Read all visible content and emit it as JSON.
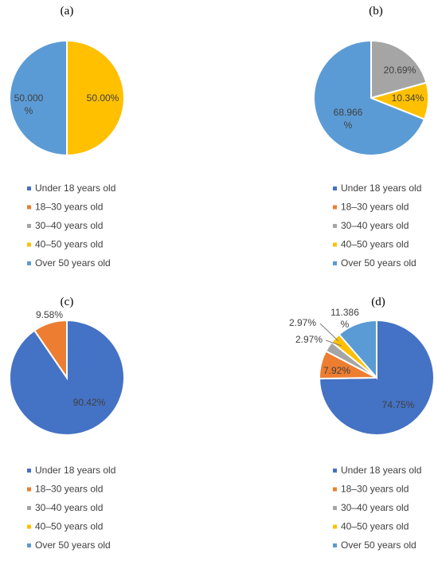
{
  "colors": {
    "Under 18 years old": "#4472C4",
    "18–30 years old": "#ED7D31",
    "30–40 years old": "#A5A5A5",
    "40–50 years old": "#FFC000",
    "Over 50 years old": "#5B9BD5"
  },
  "chart_data": [
    {
      "type": "pie",
      "title": "(a)",
      "legend_position": "bottom",
      "categories": [
        "Under 18 years old",
        "18–30 years old",
        "30–40 years old",
        "40–50 years old",
        "Over 50 years old"
      ],
      "values": [
        0,
        0,
        0,
        50.0,
        50.0
      ],
      "data_labels": [
        {
          "category": "40–50 years old",
          "lines": [
            "50.00%"
          ]
        },
        {
          "category": "Over 50 years old",
          "lines": [
            "50.000",
            "%"
          ]
        }
      ]
    },
    {
      "type": "pie",
      "title": "(b)",
      "legend_position": "bottom",
      "categories": [
        "Under 18 years old",
        "18–30 years old",
        "30–40 years old",
        "40–50 years old",
        "Over 50 years old"
      ],
      "values": [
        0,
        0,
        20.69,
        10.34,
        68.966
      ],
      "data_labels": [
        {
          "category": "30–40 years old",
          "lines": [
            "20.69%"
          ]
        },
        {
          "category": "40–50 years old",
          "lines": [
            "10.34%"
          ]
        },
        {
          "category": "Over 50 years old",
          "lines": [
            "68.966",
            "%"
          ]
        }
      ]
    },
    {
      "type": "pie",
      "title": "(c)",
      "legend_position": "bottom",
      "categories": [
        "Under 18 years old",
        "18–30 years old",
        "30–40 years old",
        "40–50 years old",
        "Over 50 years old"
      ],
      "values": [
        90.42,
        9.58,
        0,
        0,
        0
      ],
      "data_labels": [
        {
          "category": "Under 18 years old",
          "lines": [
            "90.42%"
          ]
        },
        {
          "category": "18–30 years old",
          "lines": [
            "9.58%"
          ]
        }
      ]
    },
    {
      "type": "pie",
      "title": "(d)",
      "legend_position": "bottom",
      "categories": [
        "Under 18 years old",
        "18–30 years old",
        "30–40 years old",
        "40–50 years old",
        "Over 50 years old"
      ],
      "values": [
        74.75,
        7.92,
        2.97,
        2.97,
        11.386
      ],
      "data_labels": [
        {
          "category": "Under 18 years old",
          "lines": [
            "74.75%"
          ]
        },
        {
          "category": "18–30 years old",
          "lines": [
            "7.92%"
          ]
        },
        {
          "category": "30–40 years old",
          "lines": [
            "2.97%"
          ]
        },
        {
          "category": "40–50 years old",
          "lines": [
            "2.97%"
          ]
        },
        {
          "category": "Over 50 years old",
          "lines": [
            "11.386",
            "%"
          ]
        }
      ]
    }
  ]
}
